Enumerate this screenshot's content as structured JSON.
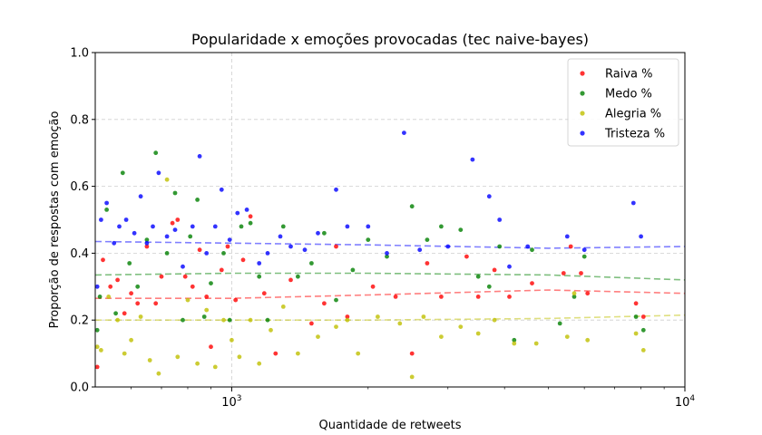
{
  "chart_data": {
    "type": "scatter",
    "title": "Popularidade x emoções provocadas (tec naive-bayes)",
    "xlabel": "Quantidade de retweets",
    "ylabel": "Proporção de respostas com emoção",
    "xscale": "log",
    "xlim": [
      500,
      10000
    ],
    "ylim": [
      0.0,
      1.0
    ],
    "x_ticks": [
      {
        "value": 1000,
        "base": "10",
        "exp": "3"
      },
      {
        "value": 10000,
        "base": "10",
        "exp": "4"
      }
    ],
    "y_ticks": [
      {
        "value": 0.0,
        "label": "0.0"
      },
      {
        "value": 0.2,
        "label": "0.2"
      },
      {
        "value": 0.4,
        "label": "0.4"
      },
      {
        "value": 0.6,
        "label": "0.6"
      },
      {
        "value": 0.8,
        "label": "0.8"
      },
      {
        "value": 1.0,
        "label": "1.0"
      }
    ],
    "grid": true,
    "legend_position": "top-right",
    "series": [
      {
        "name": "Raiva %",
        "color": "#ff0000",
        "trend": [
          [
            500,
            0.265
          ],
          [
            1000,
            0.265
          ],
          [
            2000,
            0.275
          ],
          [
            5000,
            0.29
          ],
          [
            10000,
            0.28
          ]
        ],
        "points": [
          [
            505,
            0.06
          ],
          [
            520,
            0.38
          ],
          [
            540,
            0.3
          ],
          [
            560,
            0.32
          ],
          [
            580,
            0.22
          ],
          [
            600,
            0.28
          ],
          [
            620,
            0.25
          ],
          [
            650,
            0.42
          ],
          [
            680,
            0.25
          ],
          [
            700,
            0.33
          ],
          [
            740,
            0.49
          ],
          [
            760,
            0.5
          ],
          [
            790,
            0.33
          ],
          [
            820,
            0.3
          ],
          [
            850,
            0.41
          ],
          [
            880,
            0.27
          ],
          [
            900,
            0.12
          ],
          [
            950,
            0.35
          ],
          [
            980,
            0.42
          ],
          [
            1020,
            0.26
          ],
          [
            1060,
            0.38
          ],
          [
            1100,
            0.51
          ],
          [
            1180,
            0.28
          ],
          [
            1250,
            0.1
          ],
          [
            1350,
            0.32
          ],
          [
            1500,
            0.19
          ],
          [
            1600,
            0.25
          ],
          [
            1700,
            0.42
          ],
          [
            1800,
            0.21
          ],
          [
            2050,
            0.3
          ],
          [
            2300,
            0.27
          ],
          [
            2500,
            0.1
          ],
          [
            2700,
            0.37
          ],
          [
            2900,
            0.27
          ],
          [
            3300,
            0.39
          ],
          [
            3500,
            0.27
          ],
          [
            3800,
            0.35
          ],
          [
            4100,
            0.27
          ],
          [
            4600,
            0.31
          ],
          [
            5400,
            0.34
          ],
          [
            5600,
            0.42
          ],
          [
            5900,
            0.34
          ],
          [
            6100,
            0.28
          ],
          [
            7800,
            0.25
          ],
          [
            8100,
            0.21
          ]
        ]
      },
      {
        "name": "Medo %",
        "color": "#008000",
        "trend": [
          [
            500,
            0.335
          ],
          [
            1000,
            0.34
          ],
          [
            2000,
            0.34
          ],
          [
            5000,
            0.335
          ],
          [
            10000,
            0.32
          ]
        ],
        "points": [
          [
            505,
            0.17
          ],
          [
            512,
            0.27
          ],
          [
            530,
            0.53
          ],
          [
            555,
            0.22
          ],
          [
            575,
            0.64
          ],
          [
            595,
            0.37
          ],
          [
            620,
            0.3
          ],
          [
            650,
            0.44
          ],
          [
            680,
            0.7
          ],
          [
            720,
            0.4
          ],
          [
            750,
            0.58
          ],
          [
            780,
            0.2
          ],
          [
            810,
            0.45
          ],
          [
            840,
            0.56
          ],
          [
            870,
            0.21
          ],
          [
            900,
            0.31
          ],
          [
            960,
            0.4
          ],
          [
            990,
            0.2
          ],
          [
            1050,
            0.48
          ],
          [
            1100,
            0.49
          ],
          [
            1150,
            0.33
          ],
          [
            1200,
            0.2
          ],
          [
            1300,
            0.48
          ],
          [
            1400,
            0.33
          ],
          [
            1500,
            0.37
          ],
          [
            1600,
            0.46
          ],
          [
            1700,
            0.26
          ],
          [
            1850,
            0.35
          ],
          [
            2000,
            0.44
          ],
          [
            2200,
            0.39
          ],
          [
            2500,
            0.54
          ],
          [
            2700,
            0.44
          ],
          [
            2900,
            0.48
          ],
          [
            3200,
            0.47
          ],
          [
            3500,
            0.33
          ],
          [
            3700,
            0.3
          ],
          [
            3900,
            0.42
          ],
          [
            4200,
            0.14
          ],
          [
            4600,
            0.41
          ],
          [
            5300,
            0.19
          ],
          [
            5700,
            0.27
          ],
          [
            6000,
            0.39
          ],
          [
            7800,
            0.21
          ],
          [
            8100,
            0.17
          ]
        ]
      },
      {
        "name": "Alegria %",
        "color": "#bfbf00",
        "trend": [
          [
            500,
            0.2
          ],
          [
            1000,
            0.2
          ],
          [
            2000,
            0.2
          ],
          [
            5000,
            0.205
          ],
          [
            10000,
            0.215
          ]
        ],
        "points": [
          [
            505,
            0.12
          ],
          [
            515,
            0.11
          ],
          [
            535,
            0.27
          ],
          [
            560,
            0.2
          ],
          [
            580,
            0.1
          ],
          [
            600,
            0.14
          ],
          [
            630,
            0.21
          ],
          [
            660,
            0.08
          ],
          [
            690,
            0.04
          ],
          [
            720,
            0.62
          ],
          [
            760,
            0.09
          ],
          [
            800,
            0.26
          ],
          [
            840,
            0.07
          ],
          [
            880,
            0.23
          ],
          [
            920,
            0.06
          ],
          [
            960,
            0.2
          ],
          [
            1000,
            0.14
          ],
          [
            1040,
            0.09
          ],
          [
            1100,
            0.2
          ],
          [
            1150,
            0.07
          ],
          [
            1220,
            0.17
          ],
          [
            1300,
            0.24
          ],
          [
            1400,
            0.1
          ],
          [
            1550,
            0.15
          ],
          [
            1700,
            0.18
          ],
          [
            1800,
            0.2
          ],
          [
            1900,
            0.1
          ],
          [
            2100,
            0.21
          ],
          [
            2350,
            0.19
          ],
          [
            2500,
            0.03
          ],
          [
            2650,
            0.21
          ],
          [
            2900,
            0.15
          ],
          [
            3200,
            0.18
          ],
          [
            3500,
            0.16
          ],
          [
            3800,
            0.2
          ],
          [
            4200,
            0.13
          ],
          [
            4700,
            0.13
          ],
          [
            5500,
            0.15
          ],
          [
            5700,
            0.28
          ],
          [
            6100,
            0.14
          ],
          [
            7800,
            0.16
          ],
          [
            8100,
            0.11
          ]
        ]
      },
      {
        "name": "Tristeza %",
        "color": "#0000ff",
        "trend": [
          [
            500,
            0.435
          ],
          [
            1000,
            0.43
          ],
          [
            2000,
            0.425
          ],
          [
            5000,
            0.415
          ],
          [
            10000,
            0.42
          ]
        ],
        "points": [
          [
            505,
            0.3
          ],
          [
            515,
            0.5
          ],
          [
            530,
            0.55
          ],
          [
            550,
            0.43
          ],
          [
            565,
            0.48
          ],
          [
            585,
            0.5
          ],
          [
            610,
            0.46
          ],
          [
            630,
            0.57
          ],
          [
            650,
            0.43
          ],
          [
            670,
            0.48
          ],
          [
            690,
            0.64
          ],
          [
            720,
            0.45
          ],
          [
            750,
            0.47
          ],
          [
            780,
            0.36
          ],
          [
            820,
            0.48
          ],
          [
            850,
            0.69
          ],
          [
            880,
            0.4
          ],
          [
            920,
            0.48
          ],
          [
            950,
            0.59
          ],
          [
            990,
            0.44
          ],
          [
            1030,
            0.52
          ],
          [
            1080,
            0.53
          ],
          [
            1150,
            0.37
          ],
          [
            1200,
            0.4
          ],
          [
            1280,
            0.45
          ],
          [
            1350,
            0.42
          ],
          [
            1450,
            0.41
          ],
          [
            1550,
            0.46
          ],
          [
            1700,
            0.59
          ],
          [
            1800,
            0.48
          ],
          [
            2000,
            0.48
          ],
          [
            2200,
            0.4
          ],
          [
            2400,
            0.76
          ],
          [
            2600,
            0.41
          ],
          [
            3000,
            0.42
          ],
          [
            3400,
            0.68
          ],
          [
            3700,
            0.57
          ],
          [
            3900,
            0.5
          ],
          [
            4100,
            0.36
          ],
          [
            4500,
            0.42
          ],
          [
            5500,
            0.45
          ],
          [
            6000,
            0.41
          ],
          [
            7700,
            0.55
          ],
          [
            8000,
            0.45
          ]
        ]
      }
    ]
  }
}
